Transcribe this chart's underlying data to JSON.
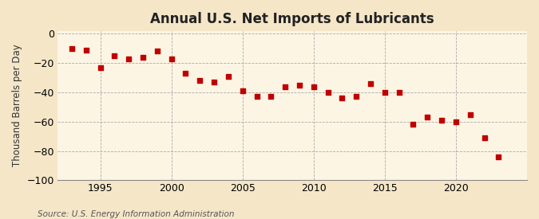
{
  "title": "Annual U.S. Net Imports of Lubricants",
  "ylabel": "Thousand Barrels per Day",
  "source": "Source: U.S. Energy Information Administration",
  "background_color": "#f5e6c8",
  "plot_background_color": "#fdf5e4",
  "marker_color": "#c00000",
  "years": [
    1993,
    1994,
    1995,
    1996,
    1997,
    1998,
    1999,
    2000,
    2001,
    2002,
    2003,
    2004,
    2005,
    2006,
    2007,
    2008,
    2009,
    2010,
    2011,
    2012,
    2013,
    2014,
    2015,
    2016,
    2017,
    2018,
    2019,
    2020,
    2021,
    2022,
    2023
  ],
  "values": [
    -10,
    -11,
    -23,
    -15,
    -17,
    -16,
    -12,
    -17,
    -27,
    -32,
    -33,
    -29,
    -39,
    -43,
    -43,
    -36,
    -35,
    -36,
    -40,
    -44,
    -43,
    -34,
    -40,
    -40,
    -62,
    -57,
    -59,
    -60,
    -55,
    -71,
    -84
  ],
  "xlim": [
    1992,
    2025
  ],
  "ylim": [
    -100,
    2
  ],
  "yticks": [
    0,
    -20,
    -40,
    -60,
    -80,
    -100
  ],
  "xticks": [
    1995,
    2000,
    2005,
    2010,
    2015,
    2020
  ],
  "grid_color": "#aaaaaa",
  "title_fontsize": 12,
  "label_fontsize": 8.5,
  "tick_fontsize": 9,
  "source_fontsize": 7.5
}
